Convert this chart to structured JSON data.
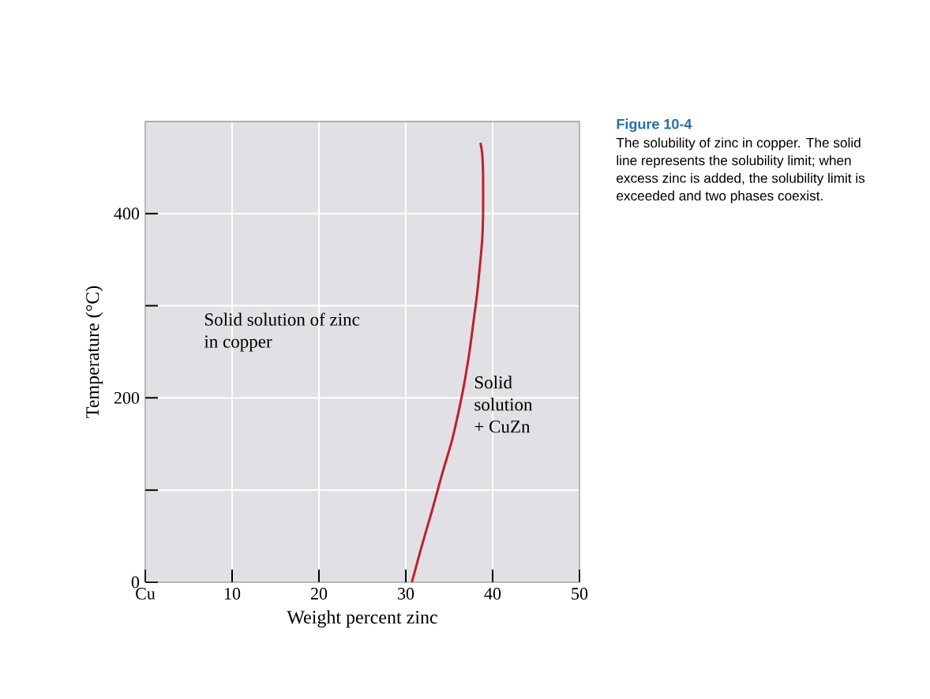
{
  "chart_data": {
    "type": "line",
    "title": "Figure 10-4",
    "subtitle": "The solubility of zinc in copper. The solid line represents the solubility limit; when excess zinc is added, the solubility limit is exceeded and two phases coexist.",
    "xlabel": "Weight percent zinc",
    "ylabel": "Temperature (°C)",
    "series": [
      {
        "color": "#c0202a",
        "x": [
          30.7,
          31.8,
          33.0,
          34.2,
          35.4,
          36.6,
          37.3,
          37.8,
          38.2,
          38.5,
          38.8,
          38.9,
          38.9,
          38.8,
          38.6
        ],
        "values": [
          0,
          38,
          77,
          118,
          157,
          209,
          248,
          283,
          312,
          340,
          372,
          400,
          443,
          465,
          477
        ]
      }
    ],
    "xlim": [
      0,
      50
    ],
    "ylim": [
      0,
      500
    ],
    "xticks": [
      {
        "value": 0,
        "label": "Cu"
      },
      10,
      20,
      30,
      40,
      50
    ],
    "yticks": [
      0,
      {
        "value": 100,
        "label": null
      },
      200,
      {
        "value": 300,
        "label": null
      },
      400
    ],
    "grid": true,
    "marker": "none",
    "line_style": "solid",
    "annotations": [
      "Solid solution of zinc in copper",
      "Solid solution + CuZn"
    ]
  }
}
